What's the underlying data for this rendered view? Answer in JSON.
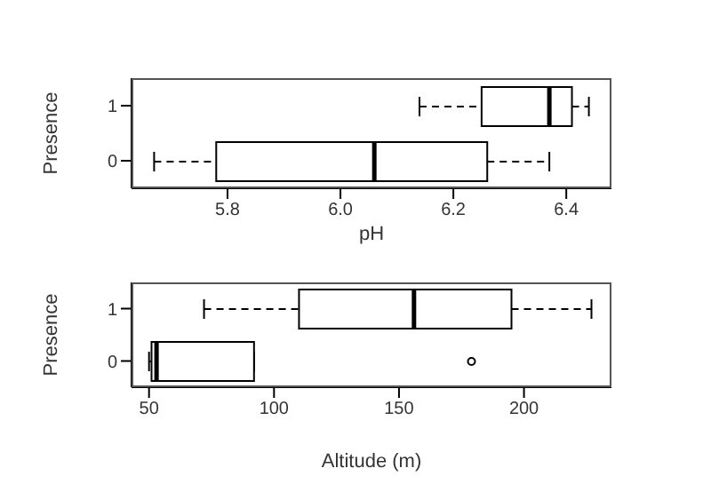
{
  "chart_data": [
    {
      "type": "box",
      "orientation": "horizontal",
      "categories": [
        "1",
        "0"
      ],
      "xlabel": "pH",
      "ylabel": "Presence",
      "xlim": [
        5.63,
        6.48
      ],
      "xticks": [
        {
          "value": 5.8,
          "label": "5.8"
        },
        {
          "value": 6.0,
          "label": "6.0"
        },
        {
          "value": 6.2,
          "label": "6.2"
        },
        {
          "value": 6.4,
          "label": "6.4"
        }
      ],
      "boxes": [
        {
          "low": 6.14,
          "q1": 6.25,
          "median": 6.37,
          "q3": 6.41,
          "high": 6.44
        },
        {
          "low": 5.67,
          "q1": 5.78,
          "median": 6.06,
          "q3": 6.26,
          "high": 6.37
        }
      ]
    },
    {
      "type": "box",
      "orientation": "horizontal",
      "categories": [
        "1",
        "0"
      ],
      "xlabel": "Altitude (m)",
      "ylabel": "Presence",
      "xlim": [
        43,
        235
      ],
      "xticks": [
        50,
        100,
        150,
        200
      ],
      "boxes": [
        {
          "low": 72,
          "q1": 110,
          "median": 156,
          "q3": 195,
          "high": 227
        },
        {
          "low": 50,
          "q1": 51,
          "median": 53,
          "q3": 92,
          "high": 92,
          "outliers": [
            179
          ]
        }
      ]
    }
  ]
}
